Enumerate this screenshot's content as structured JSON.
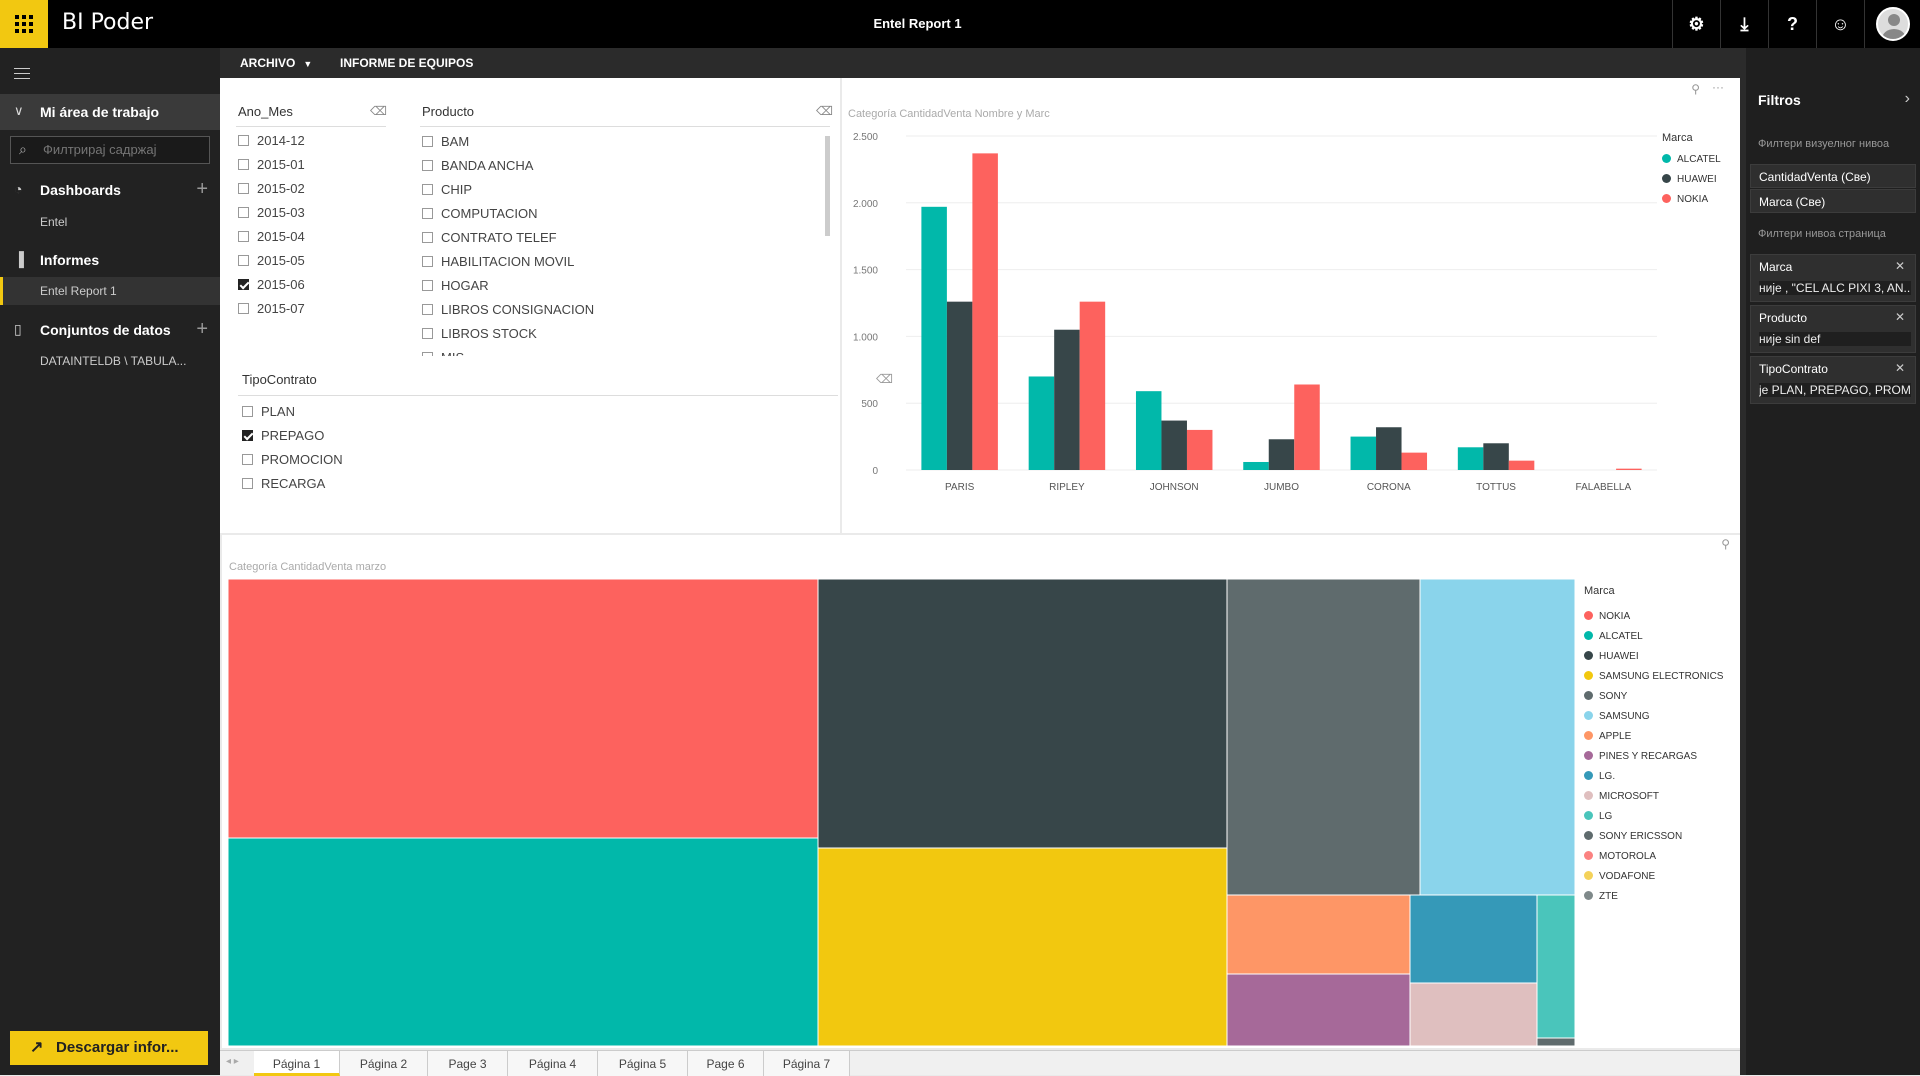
{
  "app": {
    "brand": "BI Poder",
    "report_title": "Entel Report 1"
  },
  "topbar": {
    "icons": [
      "gear-icon",
      "download-icon",
      "help-icon",
      "smiley-icon",
      "avatar"
    ],
    "glyphs": [
      "⚙",
      "⤓",
      "?",
      "☺"
    ]
  },
  "sidebar": {
    "workspace": "Mi área de trabajo",
    "search_placeholder": "Филтрирај садржај",
    "dashboards": {
      "label": "Dashboards",
      "items": [
        "Entel"
      ]
    },
    "reports": {
      "label": "Informes",
      "items": [
        "Entel Report 1"
      ]
    },
    "datasets": {
      "label": "Conjuntos de datos",
      "items": [
        "DATAINTELDB \\ TABULA..."
      ]
    },
    "download_label": "Descargar infor..."
  },
  "menubar": {
    "file": "ARCHIVO",
    "report": "INFORME DE EQUIPOS"
  },
  "slicers": {
    "ano_mes": {
      "title": "Ano_Mes",
      "items": [
        {
          "label": "2014-12",
          "checked": false
        },
        {
          "label": "2015-01",
          "checked": false
        },
        {
          "label": "2015-02",
          "checked": false
        },
        {
          "label": "2015-03",
          "checked": false
        },
        {
          "label": "2015-04",
          "checked": false
        },
        {
          "label": "2015-05",
          "checked": false
        },
        {
          "label": "2015-06",
          "checked": true
        },
        {
          "label": "2015-07",
          "checked": false
        }
      ]
    },
    "producto": {
      "title": "Producto",
      "items": [
        {
          "label": "BAM",
          "checked": false
        },
        {
          "label": "BANDA ANCHA",
          "checked": false
        },
        {
          "label": "CHIP",
          "checked": false
        },
        {
          "label": "COMPUTACION",
          "checked": false
        },
        {
          "label": "CONTRATO TELEF",
          "checked": false
        },
        {
          "label": "HABILITACION MOVIL",
          "checked": false
        },
        {
          "label": "HOGAR",
          "checked": false
        },
        {
          "label": "LIBROS CONSIGNACION",
          "checked": false
        },
        {
          "label": "LIBROS STOCK",
          "checked": false
        },
        {
          "label": "MIS",
          "checked": false
        }
      ]
    },
    "tipo_contrato": {
      "title": "TipoContrato",
      "items": [
        {
          "label": "PLAN",
          "checked": false
        },
        {
          "label": "PREPAGO",
          "checked": true
        },
        {
          "label": "PROMOCION",
          "checked": false
        },
        {
          "label": "RECARGA",
          "checked": false
        }
      ]
    }
  },
  "chart_data": [
    {
      "type": "bar",
      "title": "Categoría CantidadVenta Nombre y Marc",
      "categories": [
        "PARIS",
        "RIPLEY",
        "JOHNSON",
        "JUMBO",
        "CORONA",
        "TOTTUS",
        "FALABELLA"
      ],
      "series": [
        {
          "name": "ALCATEL",
          "color": "#01b8aa",
          "values": [
            1970,
            700,
            590,
            60,
            250,
            170,
            0
          ]
        },
        {
          "name": "HUAWEI",
          "color": "#374649",
          "values": [
            1260,
            1050,
            370,
            230,
            320,
            200,
            0
          ]
        },
        {
          "name": "NOKIA",
          "color": "#fd625e",
          "values": [
            2370,
            1260,
            300,
            640,
            130,
            70,
            10
          ]
        }
      ],
      "ylim": [
        0,
        2500
      ],
      "yticks": [
        0,
        500,
        1000,
        1500,
        2000,
        2500
      ],
      "ytick_labels": [
        "0",
        "500",
        "1.000",
        "1.500",
        "2.000",
        "2.500"
      ],
      "legend_title": "Marca",
      "legend_position": "right",
      "grid": true
    },
    {
      "type": "treemap",
      "title": "Categoría CantidadVenta marzo",
      "legend_title": "Marca",
      "legend_position": "right",
      "items": [
        {
          "name": "NOKIA",
          "color": "#fd625e"
        },
        {
          "name": "ALCATEL",
          "color": "#01b8aa"
        },
        {
          "name": "HUAWEI",
          "color": "#374649"
        },
        {
          "name": "SAMSUNG ELECTRONICS",
          "color": "#f2c80f"
        },
        {
          "name": "SONY",
          "color": "#5f6b6d"
        },
        {
          "name": "SAMSUNG",
          "color": "#8ad4eb"
        },
        {
          "name": "APPLE",
          "color": "#fe9666"
        },
        {
          "name": "PINES Y RECARGAS",
          "color": "#a66999"
        },
        {
          "name": "LG.",
          "color": "#3599b8"
        },
        {
          "name": "MICROSOFT",
          "color": "#dfbfbf"
        },
        {
          "name": "LG",
          "color": "#4ac5bb"
        },
        {
          "name": "SONY ERICSSON",
          "color": "#5f6b6d"
        },
        {
          "name": "MOTOROLA",
          "color": "#fb8281"
        },
        {
          "name": "VODAFONE",
          "color": "#f4d25a"
        },
        {
          "name": "ZTE",
          "color": "#7f898a"
        }
      ]
    }
  ],
  "pages": [
    "Página 1",
    "Página 2",
    "Page 3",
    "Página 4",
    "Página 5",
    "Page 6",
    "Página 7"
  ],
  "active_page": "Página 1",
  "filters": {
    "title": "Filtros",
    "visual_level_label": "Филтери визуелног нивоа",
    "visual_filters": [
      "CantidadVenta (Све)",
      "Marca (Све)"
    ],
    "page_level_label": "Филтери нивоа страница",
    "page_filters": [
      {
        "field": "Marca",
        "value": "није , \"CEL ALC PIXI 3, AN..."
      },
      {
        "field": "Producto",
        "value": "није sin def"
      },
      {
        "field": "TipoContrato",
        "value": "je PLAN, PREPAGO, PROM..."
      }
    ]
  }
}
